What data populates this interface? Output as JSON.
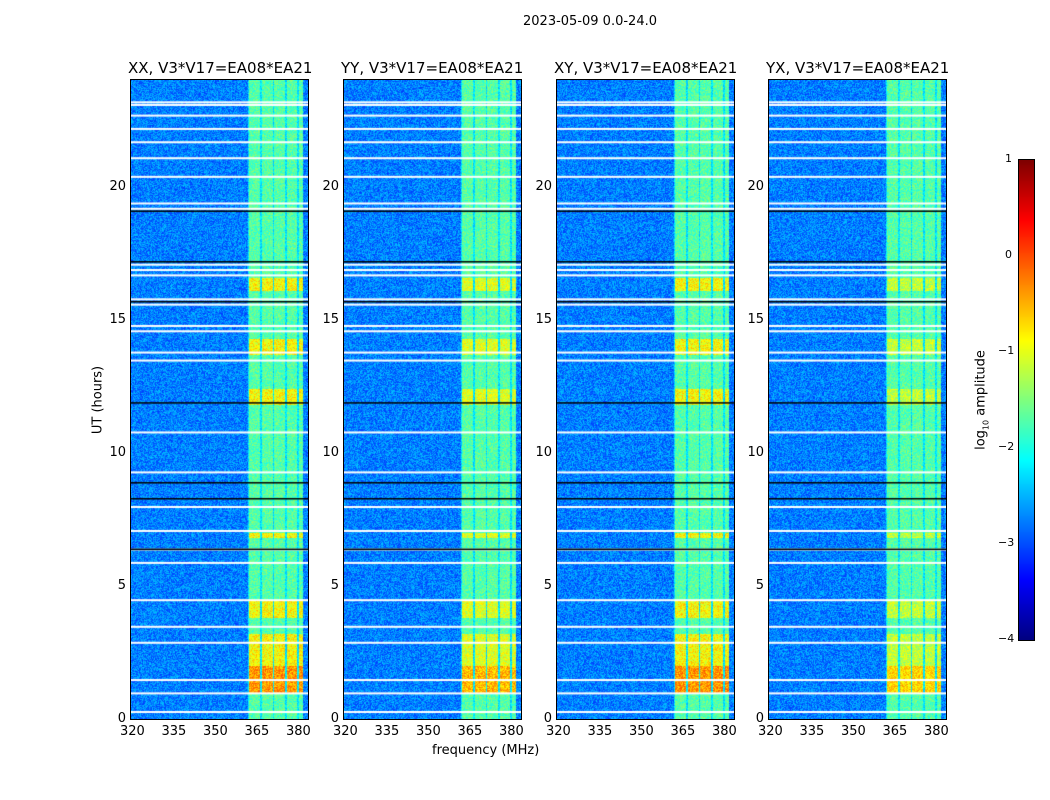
{
  "chart_data": {
    "type": "heatmap",
    "title": "2023-05-09 0.0-24.0",
    "xlabel": "frequency (MHz)",
    "ylabel": "UT (hours)",
    "xlim": [
      320,
      384
    ],
    "ylim": [
      0,
      24
    ],
    "xticks": [
      "320",
      "335",
      "350",
      "365",
      "380"
    ],
    "yticks": [
      "0",
      "5",
      "10",
      "15",
      "20"
    ],
    "panels": [
      {
        "title": "XX, V3*V17=EA08*EA21",
        "level": 1.0
      },
      {
        "title": "YY, V3*V17=EA08*EA21",
        "level": 0.95
      },
      {
        "title": "XY, V3*V17=EA08*EA21",
        "level": 1.0
      },
      {
        "title": "YX, V3*V17=EA08*EA21",
        "level": 0.9
      }
    ],
    "colorbar": {
      "label": "log10 amplitude",
      "label_main": "log",
      "label_sub": "10",
      "label_rest": " amplitude",
      "range": [
        -4,
        1
      ],
      "ticks": [
        "1",
        "0",
        "−1",
        "−2",
        "−3",
        "−4"
      ],
      "colormap": "jet"
    },
    "rfi_band_mhz": [
      362,
      382
    ],
    "flagged_hours": [
      0.3,
      1.0,
      1.5,
      2.9,
      3.5,
      4.5,
      5.9,
      6.4,
      7.1,
      8.0,
      9.3,
      10.8,
      13.5,
      13.8,
      14.6,
      14.8,
      15.6,
      15.8,
      16.7,
      16.9,
      17.1,
      19.2,
      19.4,
      20.4,
      21.1,
      21.7,
      22.2,
      22.7,
      23.1,
      23.2
    ],
    "dark_hours": [
      6.4,
      8.3,
      8.9,
      11.9,
      15.7,
      17.2,
      19.1
    ],
    "bright_hours": [
      [
        1.0,
        3.2
      ],
      [
        3.8,
        4.5
      ],
      [
        6.8,
        7.0
      ],
      [
        11.8,
        12.4
      ],
      [
        13.7,
        14.3
      ],
      [
        16.1,
        16.6
      ]
    ]
  }
}
